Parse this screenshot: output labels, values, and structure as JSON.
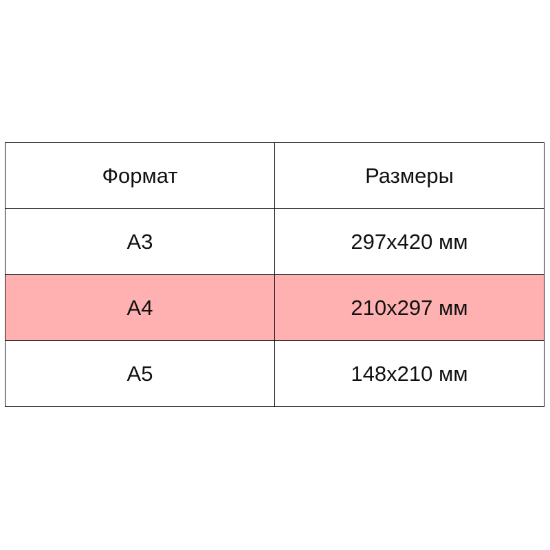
{
  "table": {
    "headers": [
      "Формат",
      "Размеры"
    ],
    "rows": [
      {
        "format": "A3",
        "size": "297x420 мм",
        "highlighted": false
      },
      {
        "format": "A4",
        "size": "210x297 мм",
        "highlighted": true
      },
      {
        "format": "A5",
        "size": "148x210 мм",
        "highlighted": false
      }
    ],
    "highlight_color": "#ffb0b0"
  }
}
